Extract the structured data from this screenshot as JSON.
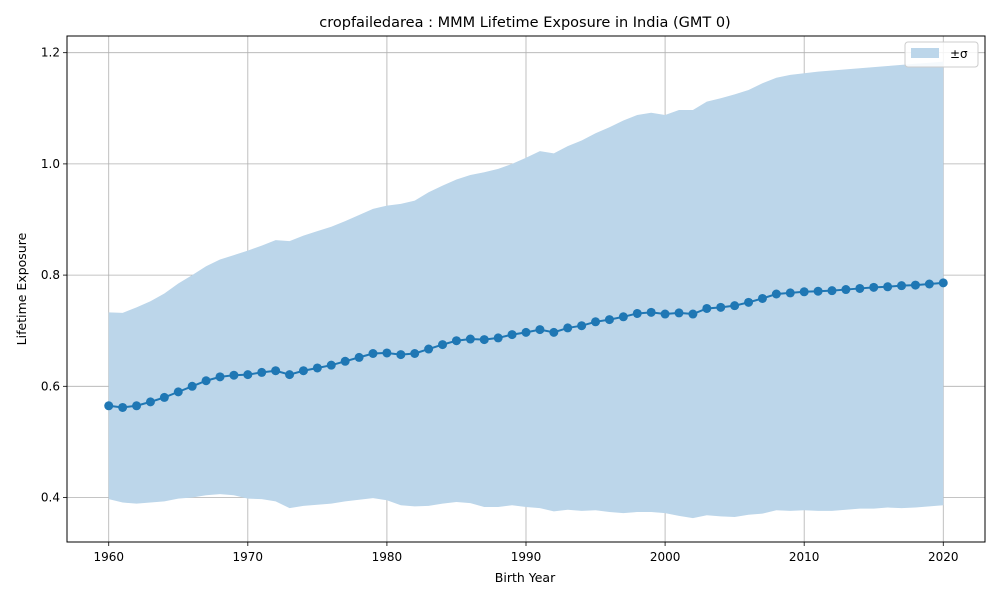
{
  "chart_data": {
    "type": "line",
    "title": "cropfailedarea : MMM Lifetime Exposure in India (GMT 0)",
    "xlabel": "Birth Year",
    "ylabel": "Lifetime Exposure",
    "xlim": [
      1957,
      2023
    ],
    "ylim": [
      0.32,
      1.23
    ],
    "xticks": [
      1960,
      1970,
      1980,
      1990,
      2000,
      2010,
      2020
    ],
    "yticks": [
      0.4,
      0.6,
      0.8,
      1.0,
      1.2
    ],
    "xtick_labels": [
      "1960",
      "1970",
      "1980",
      "1990",
      "2000",
      "2010",
      "2020"
    ],
    "ytick_labels": [
      "0.4",
      "0.6",
      "0.8",
      "1.0",
      "1.2"
    ],
    "grid": true,
    "legend": {
      "placement": "top-right",
      "entries": [
        "±σ"
      ]
    },
    "colors": {
      "line": "#1f77b4",
      "band": "#bcd6ea",
      "grid": "#b0b0b0"
    },
    "x": [
      1960,
      1961,
      1962,
      1963,
      1964,
      1965,
      1966,
      1967,
      1968,
      1969,
      1970,
      1971,
      1972,
      1973,
      1974,
      1975,
      1976,
      1977,
      1978,
      1979,
      1980,
      1981,
      1982,
      1983,
      1984,
      1985,
      1986,
      1987,
      1988,
      1989,
      1990,
      1991,
      1992,
      1993,
      1994,
      1995,
      1996,
      1997,
      1998,
      1999,
      2000,
      2001,
      2002,
      2003,
      2004,
      2005,
      2006,
      2007,
      2008,
      2009,
      2010,
      2011,
      2012,
      2013,
      2014,
      2015,
      2016,
      2017,
      2018,
      2019,
      2020
    ],
    "series": [
      {
        "values": [
          0.565,
          0.562,
          0.565,
          0.572,
          0.58,
          0.59,
          0.6,
          0.61,
          0.617,
          0.62,
          0.621,
          0.625,
          0.628,
          0.621,
          0.628,
          0.633,
          0.638,
          0.645,
          0.652,
          0.659,
          0.66,
          0.657,
          0.659,
          0.667,
          0.675,
          0.682,
          0.685,
          0.684,
          0.687,
          0.693,
          0.697,
          0.702,
          0.697,
          0.705,
          0.709,
          0.716,
          0.72,
          0.725,
          0.731,
          0.733,
          0.73,
          0.732,
          0.73,
          0.74,
          0.742,
          0.745,
          0.751,
          0.758,
          0.766,
          0.768,
          0.77,
          0.771,
          0.772,
          0.774,
          0.776,
          0.778,
          0.779,
          0.781,
          0.782,
          0.784,
          0.786
        ],
        "upper": [
          0.733,
          0.732,
          0.742,
          0.753,
          0.767,
          0.785,
          0.8,
          0.816,
          0.828,
          0.836,
          0.844,
          0.853,
          0.863,
          0.861,
          0.871,
          0.879,
          0.887,
          0.897,
          0.908,
          0.919,
          0.925,
          0.928,
          0.934,
          0.949,
          0.961,
          0.972,
          0.98,
          0.985,
          0.991,
          1.0,
          1.011,
          1.023,
          1.019,
          1.032,
          1.042,
          1.055,
          1.066,
          1.078,
          1.088,
          1.092,
          1.088,
          1.097,
          1.097,
          1.112,
          1.118,
          1.125,
          1.133,
          1.145,
          1.155,
          1.16,
          1.163,
          1.166,
          1.168,
          1.17,
          1.172,
          1.174,
          1.176,
          1.178,
          1.18,
          1.182,
          1.184
        ],
        "lower": [
          0.397,
          0.391,
          0.389,
          0.391,
          0.393,
          0.398,
          0.4,
          0.404,
          0.406,
          0.404,
          0.398,
          0.397,
          0.393,
          0.381,
          0.385,
          0.387,
          0.389,
          0.393,
          0.396,
          0.399,
          0.395,
          0.386,
          0.384,
          0.385,
          0.389,
          0.392,
          0.39,
          0.383,
          0.383,
          0.386,
          0.383,
          0.381,
          0.375,
          0.378,
          0.376,
          0.377,
          0.374,
          0.372,
          0.374,
          0.374,
          0.372,
          0.367,
          0.363,
          0.368,
          0.366,
          0.365,
          0.369,
          0.371,
          0.377,
          0.376,
          0.377,
          0.376,
          0.376,
          0.378,
          0.38,
          0.38,
          0.382,
          0.381,
          0.382,
          0.384,
          0.386
        ]
      }
    ]
  }
}
